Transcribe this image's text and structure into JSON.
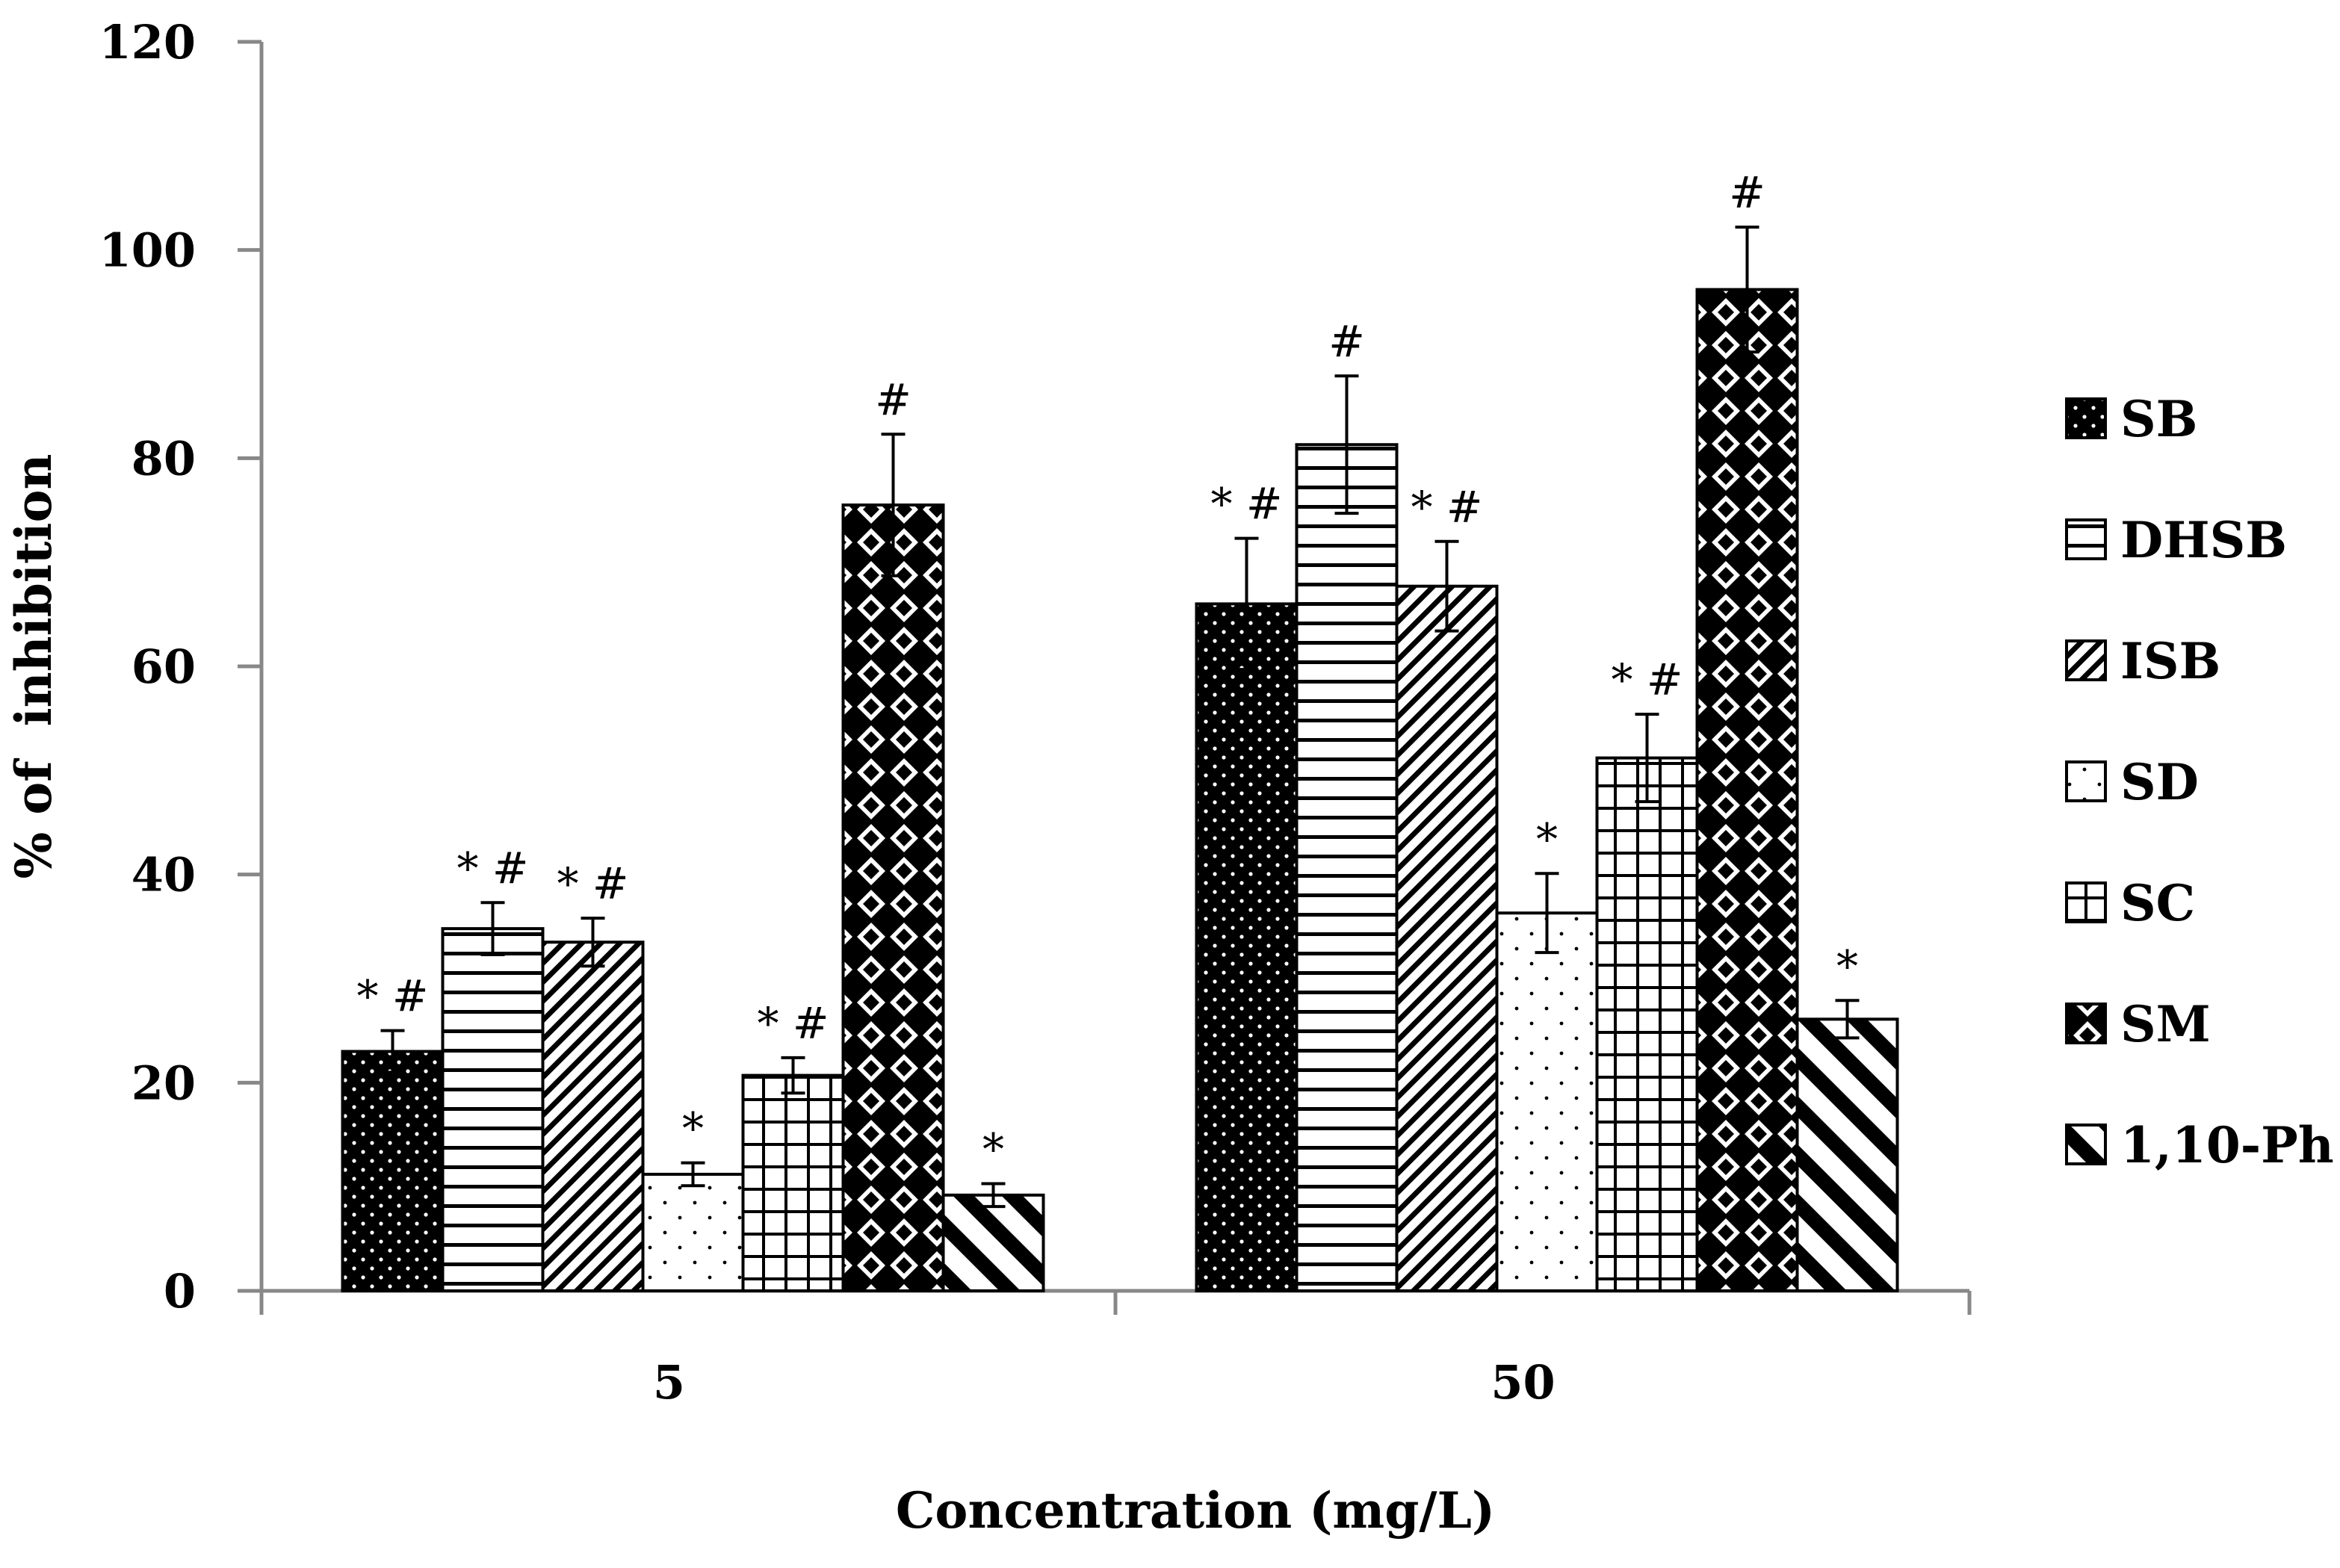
{
  "chart_data": {
    "type": "bar",
    "title": "",
    "xlabel": "Concentration (mg/L)",
    "ylabel": "% of  inhibition",
    "ylim": [
      0,
      120
    ],
    "yticks": [
      0,
      20,
      40,
      60,
      80,
      100,
      120
    ],
    "categories": [
      "5",
      "50"
    ],
    "grid": false,
    "legend_position": "right",
    "series": [
      {
        "name": "SB",
        "pattern": "dots-dark",
        "values": [
          23,
          66
        ],
        "errors": [
          2,
          6.3
        ],
        "annotations": [
          "* #",
          "* #"
        ]
      },
      {
        "name": "DHSB",
        "pattern": "horizontal",
        "values": [
          34.8,
          81.3
        ],
        "errors": [
          2.5,
          6.6
        ],
        "annotations": [
          "* #",
          "#"
        ]
      },
      {
        "name": "ISB",
        "pattern": "diagonal",
        "values": [
          33.5,
          67.7
        ],
        "errors": [
          2.3,
          4.3
        ],
        "annotations": [
          "* #",
          "* #"
        ]
      },
      {
        "name": "SD",
        "pattern": "dots-light",
        "values": [
          11.2,
          36.3
        ],
        "errors": [
          1.1,
          3.8
        ],
        "annotations": [
          "*",
          "*"
        ]
      },
      {
        "name": "SC",
        "pattern": "grid",
        "values": [
          20.7,
          51.2
        ],
        "errors": [
          1.7,
          4.2
        ],
        "annotations": [
          "* #",
          "* #"
        ]
      },
      {
        "name": "SM",
        "pattern": "diamond",
        "values": [
          75.5,
          96.2
        ],
        "errors": [
          6.8,
          6
        ],
        "annotations": [
          "#",
          "#"
        ]
      },
      {
        "name": "1,10-Ph",
        "pattern": "wide-diagonal",
        "values": [
          9.2,
          26.1
        ],
        "errors": [
          1.1,
          1.8
        ],
        "annotations": [
          "*",
          "*"
        ]
      }
    ]
  }
}
